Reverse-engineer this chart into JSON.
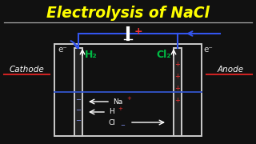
{
  "title": "Electrolysis of NaCl",
  "title_color": "#FFFF00",
  "bg_color": "#111111",
  "cathode_label": "Cathode",
  "anode_label": "Anode",
  "underline_color": "#CC2222",
  "h2_label": "H₂",
  "cl2_label": "Cl₂",
  "h2_color": "#00BB44",
  "cl2_color": "#00BB44",
  "wire_color": "#3355EE",
  "electrode_color": "#CCCCCC",
  "box_color": "#CCCCCC",
  "text_color": "#FFFFFF",
  "plus_color": "#EE3333",
  "minus_color": "#8899FF",
  "electron_color": "#DDDDDD",
  "arrow_color": "#DDDDDD",
  "blue_line_color": "#3355CC"
}
